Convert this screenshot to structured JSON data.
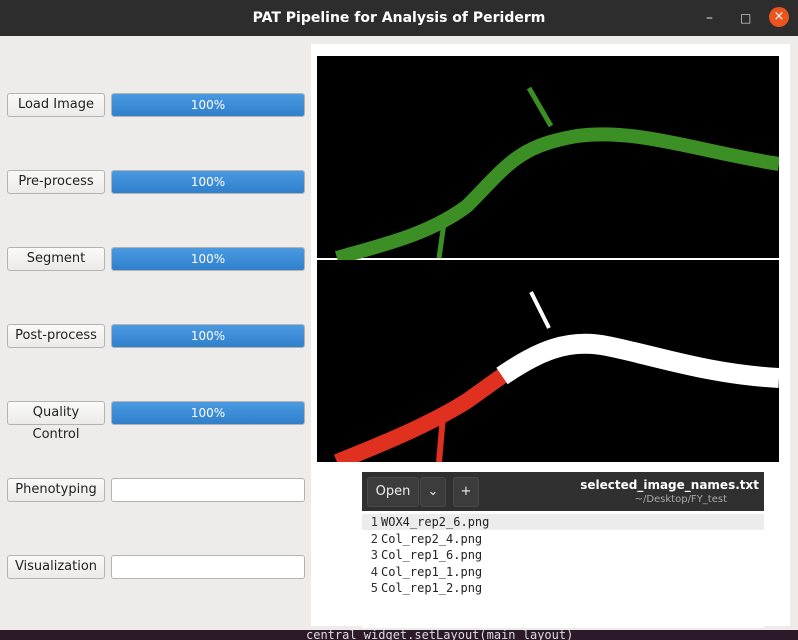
{
  "window": {
    "title": "PAT Pipeline for Analysis of Periderm"
  },
  "steps": [
    {
      "button": "Load Image",
      "progress": 100,
      "progress_label": "100%"
    },
    {
      "button": "Pre-process",
      "progress": 100,
      "progress_label": "100%"
    },
    {
      "button": "Segment",
      "progress": 100,
      "progress_label": "100%"
    },
    {
      "button": "Post-process",
      "progress": 100,
      "progress_label": "100%"
    },
    {
      "button": "Quality Control",
      "progress": 100,
      "progress_label": "100%"
    },
    {
      "button": "Phenotyping",
      "progress": null
    },
    {
      "button": "Visualization",
      "progress": null
    }
  ],
  "editor": {
    "open_button": "Open",
    "file_name": "selected_image_names.txt",
    "file_path": "~/Desktop/FY_test",
    "lines": [
      {
        "number": "1",
        "text": "WOX4_rep2_6.png"
      },
      {
        "number": "2",
        "text": "Col_rep2_4.png"
      },
      {
        "number": "3",
        "text": "Col_rep1_6.png"
      },
      {
        "number": "4",
        "text": "Col_rep1_1.png"
      },
      {
        "number": "5",
        "text": "Col_rep1_2.png"
      }
    ]
  },
  "background_text": "central_widget.setLayout(main_layout)"
}
